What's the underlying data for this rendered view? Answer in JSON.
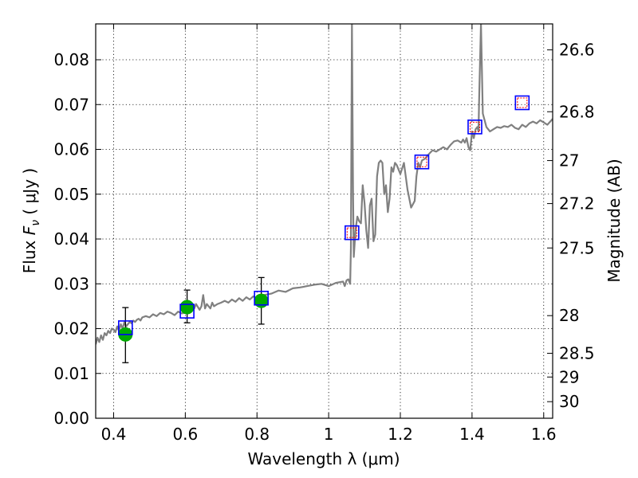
{
  "chart_data": {
    "type": "line",
    "xlabel": "Wavelength  λ (μm)",
    "ylabel_left_prefix": "Flux ",
    "ylabel_left_symbol": "F",
    "ylabel_left_sub": "ν",
    "ylabel_left_suffix": " ( μJy )",
    "ylabel_right": "Magnitude (AB)",
    "xlim": [
      0.35,
      1.625
    ],
    "ylim": [
      0.0,
      0.088
    ],
    "grid": true,
    "x_ticks": [
      {
        "value": 0.4,
        "label": "0.4"
      },
      {
        "value": 0.6,
        "label": "0.6"
      },
      {
        "value": 0.8,
        "label": "0.8"
      },
      {
        "value": 1.0,
        "label": "1"
      },
      {
        "value": 1.2,
        "label": "1.2"
      },
      {
        "value": 1.4,
        "label": "1.4"
      },
      {
        "value": 1.6,
        "label": "1.6"
      }
    ],
    "y_ticks": [
      {
        "value": 0.0,
        "label": "0.00"
      },
      {
        "value": 0.01,
        "label": "0.01"
      },
      {
        "value": 0.02,
        "label": "0.02"
      },
      {
        "value": 0.03,
        "label": "0.03"
      },
      {
        "value": 0.04,
        "label": "0.04"
      },
      {
        "value": 0.05,
        "label": "0.05"
      },
      {
        "value": 0.06,
        "label": "0.06"
      },
      {
        "value": 0.07,
        "label": "0.07"
      },
      {
        "value": 0.08,
        "label": "0.08"
      }
    ],
    "mag_ticks": [
      {
        "flux": 0.0822,
        "label": "26.6"
      },
      {
        "flux": 0.0684,
        "label": "26.8"
      },
      {
        "flux": 0.0575,
        "label": "27"
      },
      {
        "flux": 0.0479,
        "label": "27.2"
      },
      {
        "flux": 0.038,
        "label": "27.5"
      },
      {
        "flux": 0.0229,
        "label": "28"
      },
      {
        "flux": 0.0145,
        "label": "28.5"
      },
      {
        "flux": 0.0092,
        "label": "29"
      },
      {
        "flux": 0.0037,
        "label": "30"
      }
    ],
    "series": [
      {
        "name": "model-spectrum",
        "color": "#808080",
        "x": [
          0.35,
          0.355,
          0.36,
          0.365,
          0.37,
          0.375,
          0.38,
          0.385,
          0.39,
          0.395,
          0.4,
          0.405,
          0.41,
          0.415,
          0.42,
          0.425,
          0.43,
          0.435,
          0.44,
          0.445,
          0.45,
          0.455,
          0.46,
          0.465,
          0.47,
          0.475,
          0.48,
          0.49,
          0.5,
          0.51,
          0.52,
          0.53,
          0.54,
          0.55,
          0.56,
          0.57,
          0.58,
          0.59,
          0.6,
          0.605,
          0.61,
          0.62,
          0.625,
          0.63,
          0.64,
          0.645,
          0.65,
          0.655,
          0.66,
          0.67,
          0.675,
          0.68,
          0.69,
          0.7,
          0.71,
          0.72,
          0.73,
          0.74,
          0.75,
          0.76,
          0.77,
          0.78,
          0.79,
          0.8,
          0.82,
          0.84,
          0.86,
          0.88,
          0.9,
          0.92,
          0.94,
          0.96,
          0.98,
          1.0,
          1.02,
          1.04,
          1.045,
          1.05,
          1.055,
          1.06,
          1.062,
          1.065,
          1.068,
          1.07,
          1.075,
          1.08,
          1.085,
          1.09,
          1.095,
          1.1,
          1.105,
          1.11,
          1.115,
          1.12,
          1.125,
          1.13,
          1.135,
          1.14,
          1.145,
          1.15,
          1.155,
          1.16,
          1.165,
          1.17,
          1.175,
          1.18,
          1.185,
          1.19,
          1.2,
          1.21,
          1.22,
          1.23,
          1.24,
          1.245,
          1.25,
          1.255,
          1.26,
          1.27,
          1.28,
          1.29,
          1.3,
          1.31,
          1.32,
          1.33,
          1.34,
          1.35,
          1.36,
          1.37,
          1.375,
          1.38,
          1.385,
          1.39,
          1.395,
          1.4,
          1.405,
          1.41,
          1.415,
          1.418,
          1.42,
          1.425,
          1.43,
          1.44,
          1.45,
          1.46,
          1.47,
          1.48,
          1.49,
          1.5,
          1.51,
          1.52,
          1.53,
          1.54,
          1.55,
          1.56,
          1.57,
          1.58,
          1.59,
          1.6,
          1.61,
          1.625
        ],
        "y": [
          0.0165,
          0.018,
          0.017,
          0.0185,
          0.0175,
          0.019,
          0.0185,
          0.0195,
          0.019,
          0.02,
          0.0198,
          0.0192,
          0.0205,
          0.0195,
          0.021,
          0.02,
          0.0215,
          0.0205,
          0.021,
          0.0215,
          0.0212,
          0.0218,
          0.0215,
          0.022,
          0.0222,
          0.0218,
          0.0225,
          0.0228,
          0.0225,
          0.0232,
          0.0228,
          0.0235,
          0.0232,
          0.0238,
          0.0235,
          0.023,
          0.0238,
          0.0234,
          0.0236,
          0.0248,
          0.0242,
          0.0252,
          0.0245,
          0.0255,
          0.0242,
          0.025,
          0.0275,
          0.0245,
          0.0255,
          0.0245,
          0.0258,
          0.025,
          0.0255,
          0.0258,
          0.0262,
          0.0258,
          0.0265,
          0.026,
          0.0268,
          0.0262,
          0.027,
          0.0265,
          0.0272,
          0.0268,
          0.0275,
          0.0278,
          0.0285,
          0.0282,
          0.029,
          0.0292,
          0.0295,
          0.0298,
          0.03,
          0.0295,
          0.0302,
          0.0305,
          0.0295,
          0.0308,
          0.031,
          0.03,
          0.038,
          0.088,
          0.05,
          0.036,
          0.042,
          0.045,
          0.044,
          0.0435,
          0.052,
          0.048,
          0.042,
          0.038,
          0.0475,
          0.049,
          0.0395,
          0.041,
          0.054,
          0.057,
          0.0575,
          0.057,
          0.05,
          0.052,
          0.046,
          0.049,
          0.056,
          0.055,
          0.057,
          0.0565,
          0.0545,
          0.057,
          0.051,
          0.047,
          0.0485,
          0.054,
          0.057,
          0.056,
          0.0575,
          0.058,
          0.059,
          0.0598,
          0.0595,
          0.06,
          0.0605,
          0.06,
          0.061,
          0.0618,
          0.062,
          0.0615,
          0.0622,
          0.0615,
          0.0625,
          0.0605,
          0.0598,
          0.064,
          0.0625,
          0.0645,
          0.065,
          0.064,
          0.072,
          0.088,
          0.068,
          0.065,
          0.064,
          0.0645,
          0.065,
          0.0648,
          0.0652,
          0.065,
          0.0655,
          0.0648,
          0.0645,
          0.0655,
          0.065,
          0.0658,
          0.0662,
          0.0658,
          0.0665,
          0.066,
          0.0655,
          0.0668
        ]
      },
      {
        "name": "green-points",
        "color": "#00aa00",
        "x": [
          0.433,
          0.605,
          0.812
        ],
        "y": [
          0.0187,
          0.0248,
          0.0262
        ],
        "yerr_low": [
          0.0063,
          0.0035,
          0.0052
        ],
        "yerr_high": [
          0.006,
          0.0038,
          0.0052
        ]
      },
      {
        "name": "blue-squares",
        "color": "#0000ff",
        "x": [
          0.433,
          0.605,
          0.812,
          1.065,
          1.26,
          1.408,
          1.54
        ],
        "y": [
          0.0202,
          0.0239,
          0.0268,
          0.0414,
          0.0572,
          0.065,
          0.0704
        ]
      },
      {
        "name": "red-squares",
        "color": "#ff0000",
        "x": [
          1.065,
          1.26,
          1.408,
          1.54
        ],
        "y": [
          0.0414,
          0.0572,
          0.065,
          0.0704
        ]
      }
    ]
  }
}
